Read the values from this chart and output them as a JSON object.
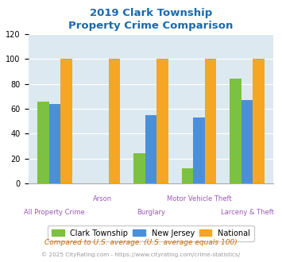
{
  "title_line1": "2019 Clark Township",
  "title_line2": "Property Crime Comparison",
  "categories": [
    "All Property Crime",
    "Arson",
    "Burglary",
    "Motor Vehicle Theft",
    "Larceny & Theft"
  ],
  "clark": [
    66,
    0,
    24,
    12,
    84
  ],
  "nj": [
    64,
    0,
    55,
    53,
    67
  ],
  "national": [
    100,
    100,
    100,
    100,
    100
  ],
  "colors": {
    "clark": "#7cc142",
    "nj": "#4a90d9",
    "national": "#f5a623"
  },
  "ylim": [
    0,
    120
  ],
  "yticks": [
    0,
    20,
    40,
    60,
    80,
    100,
    120
  ],
  "legend_labels": [
    "Clark Township",
    "New Jersey",
    "National"
  ],
  "footnote1": "Compared to U.S. average. (U.S. average equals 100)",
  "footnote2": "© 2025 CityRating.com - https://www.cityrating.com/crime-statistics/",
  "title_color": "#1a6aab",
  "xlabel_color": "#9b59b6",
  "footnote1_color": "#cc6600",
  "footnote2_color": "#999999",
  "bg_color": "#dde9f0",
  "fig_bg": "#ffffff",
  "bar_width": 0.24,
  "title_fontsize": 9.5
}
